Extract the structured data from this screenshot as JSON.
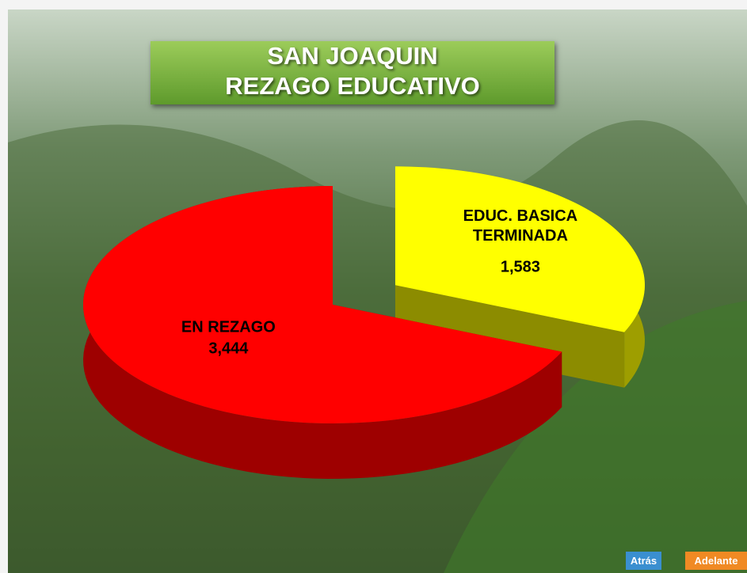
{
  "chart_data": {
    "type": "pie",
    "title": [
      "SAN JOAQUIN",
      "REZAGO EDUCATIVO"
    ],
    "categories": [
      "EN REZAGO",
      "EDUC. BASICA TERMINADA"
    ],
    "values": [
      3444,
      1583
    ],
    "value_labels": [
      "3,444",
      "1,583"
    ],
    "colors": [
      "#ff0000",
      "#ffff00"
    ]
  },
  "navigation": {
    "back": "Atrás",
    "forward": "Adelante"
  }
}
